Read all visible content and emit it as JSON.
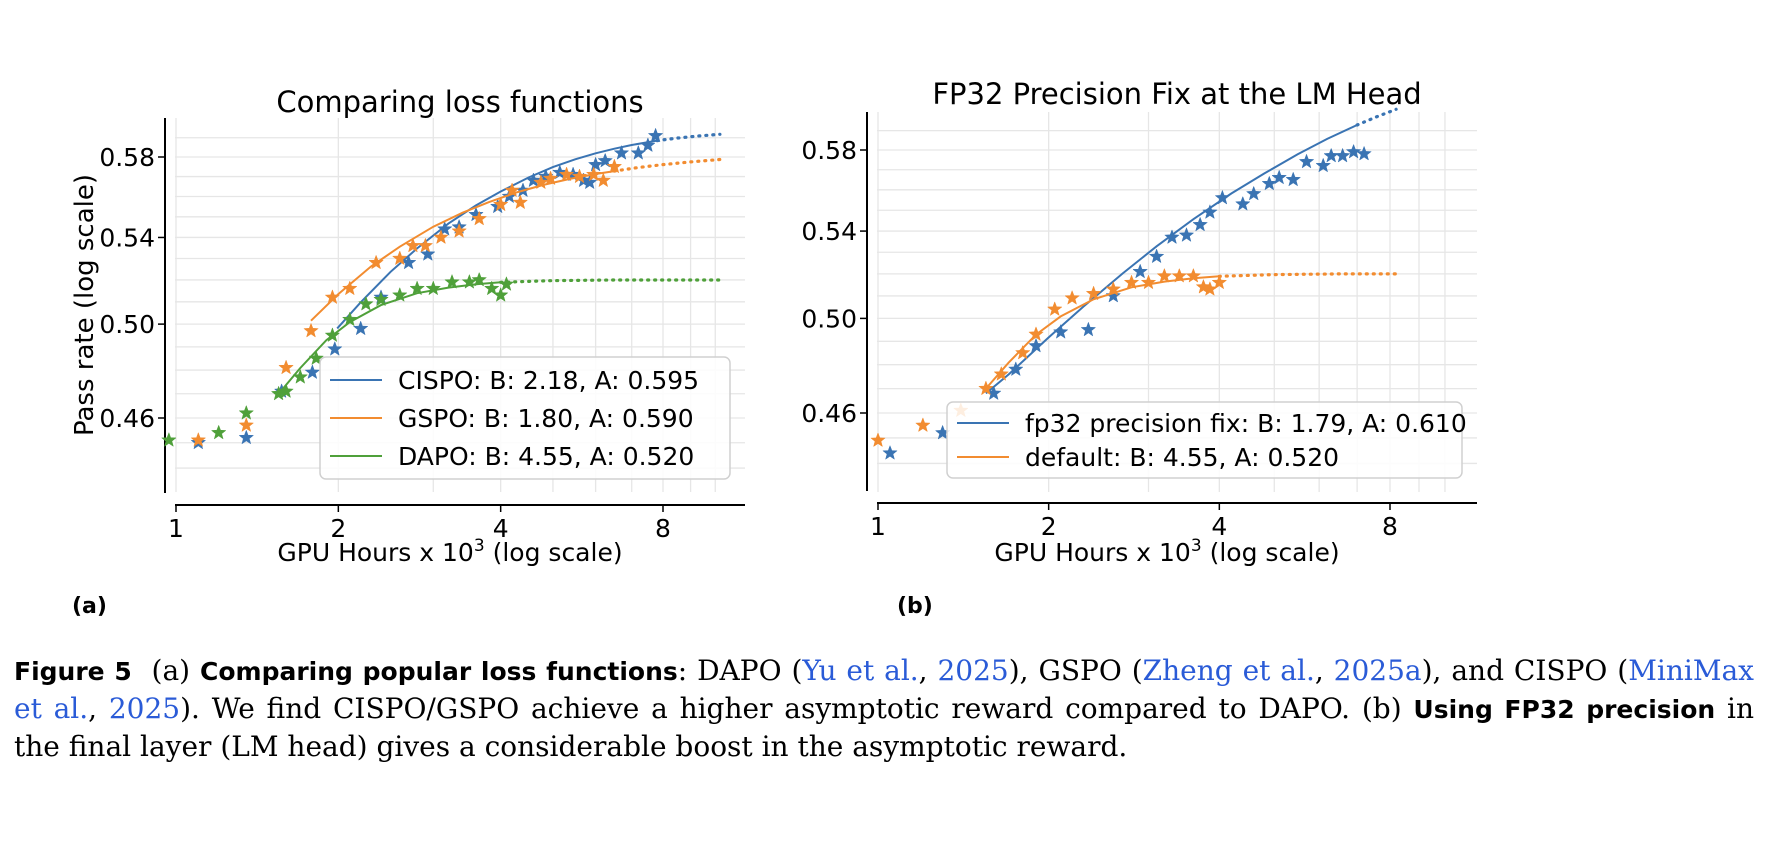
{
  "panel_labels": [
    "(a)",
    "(b)"
  ],
  "chart_data": [
    {
      "type": "scatter",
      "title": "Comparing loss functions",
      "xlabel_main": "GPU Hours x 10",
      "xlabel_sup": "3",
      "xlabel_tail": " (log scale)",
      "ylabel": "Pass rate (log scale)",
      "x_scale": "log",
      "y_scale": "log",
      "xlim": [
        0.97,
        11
      ],
      "ylim": [
        0.435,
        0.598
      ],
      "xticks": [
        1,
        2,
        4,
        8
      ],
      "xtick_labels": [
        "1",
        "2",
        "4",
        "8"
      ],
      "yticks": [
        0.46,
        0.5,
        0.54,
        0.58
      ],
      "ytick_labels": [
        "0.46",
        "0.50",
        "0.54",
        "0.58"
      ],
      "grid": true,
      "legend_placement": "lower-right",
      "series": [
        {
          "name": "CISPO: B: 2.18, A: 0.595",
          "color": "#3a74b3",
          "points": [
            [
              1.1,
              0.45
            ],
            [
              1.35,
              0.452
            ],
            [
              1.57,
              0.471
            ],
            [
              1.79,
              0.479
            ],
            [
              1.97,
              0.489
            ],
            [
              2.2,
              0.498
            ],
            [
              2.4,
              0.512
            ],
            [
              2.7,
              0.528
            ],
            [
              2.93,
              0.532
            ],
            [
              3.15,
              0.544
            ],
            [
              3.35,
              0.545
            ],
            [
              3.6,
              0.551
            ],
            [
              3.95,
              0.555
            ],
            [
              4.15,
              0.56
            ],
            [
              4.4,
              0.563
            ],
            [
              4.6,
              0.568
            ],
            [
              4.85,
              0.57
            ],
            [
              5.15,
              0.572
            ],
            [
              5.45,
              0.571
            ],
            [
              5.7,
              0.568
            ],
            [
              5.85,
              0.567
            ],
            [
              6.0,
              0.576
            ],
            [
              6.25,
              0.578
            ],
            [
              6.7,
              0.582
            ],
            [
              7.2,
              0.582
            ],
            [
              7.5,
              0.586
            ],
            [
              7.75,
              0.591
            ]
          ],
          "fit_solid": [
            [
              1.99,
              0.4981
            ],
            [
              2.2,
              0.5098
            ],
            [
              2.5,
              0.5238
            ],
            [
              2.8,
              0.5348
            ],
            [
              3.2,
              0.5467
            ],
            [
              3.6,
              0.5556
            ],
            [
              4.0,
              0.5625
            ],
            [
              4.5,
              0.5695
            ],
            [
              5.0,
              0.5748
            ],
            [
              5.5,
              0.5788
            ],
            [
              6.0,
              0.5819
            ],
            [
              6.5,
              0.5843
            ],
            [
              7.0,
              0.5862
            ],
            [
              7.8,
              0.5885
            ]
          ],
          "fit_dotted": [
            [
              7.8,
              0.5885
            ],
            [
              8.5,
              0.5898
            ],
            [
              9.3,
              0.5909
            ],
            [
              10.2,
              0.5918
            ]
          ]
        },
        {
          "name": "GSPO: B: 1.80, A: 0.590",
          "color": "#f28c30",
          "points": [
            [
              1.1,
              0.451
            ],
            [
              1.35,
              0.457
            ],
            [
              1.6,
              0.481
            ],
            [
              1.78,
              0.497
            ],
            [
              1.95,
              0.512
            ],
            [
              2.1,
              0.516
            ],
            [
              2.35,
              0.528
            ],
            [
              2.6,
              0.53
            ],
            [
              2.75,
              0.536
            ],
            [
              2.9,
              0.536
            ],
            [
              3.1,
              0.54
            ],
            [
              3.35,
              0.543
            ],
            [
              3.65,
              0.549
            ],
            [
              4.0,
              0.556
            ],
            [
              4.2,
              0.563
            ],
            [
              4.35,
              0.557
            ],
            [
              4.75,
              0.567
            ],
            [
              4.95,
              0.569
            ],
            [
              5.3,
              0.571
            ],
            [
              5.6,
              0.57
            ],
            [
              5.95,
              0.571
            ],
            [
              6.2,
              0.568
            ],
            [
              6.5,
              0.575
            ]
          ],
          "fit_solid": [
            [
              1.78,
              0.5015
            ],
            [
              2.0,
              0.5135
            ],
            [
              2.3,
              0.5263
            ],
            [
              2.6,
              0.5356
            ],
            [
              3.0,
              0.5452
            ],
            [
              3.4,
              0.552
            ],
            [
              3.8,
              0.5572
            ],
            [
              4.3,
              0.5622
            ],
            [
              4.8,
              0.5658
            ],
            [
              5.4,
              0.569
            ],
            [
              6.0,
              0.5713
            ],
            [
              6.5,
              0.5728
            ]
          ],
          "fit_dotted": [
            [
              6.5,
              0.5728
            ],
            [
              7.2,
              0.5746
            ],
            [
              8.0,
              0.5761
            ],
            [
              9.0,
              0.5775
            ],
            [
              10.2,
              0.5787
            ]
          ]
        },
        {
          "name": "DAPO: B: 4.55, A: 0.520",
          "color": "#4fa03a",
          "points": [
            [
              0.97,
              0.451
            ],
            [
              1.2,
              0.454
            ],
            [
              1.35,
              0.462
            ],
            [
              1.55,
              0.47
            ],
            [
              1.6,
              0.471
            ],
            [
              1.7,
              0.477
            ],
            [
              1.82,
              0.485
            ],
            [
              1.95,
              0.495
            ],
            [
              2.1,
              0.502
            ],
            [
              2.25,
              0.509
            ],
            [
              2.4,
              0.511
            ],
            [
              2.6,
              0.513
            ],
            [
              2.8,
              0.516
            ],
            [
              3.0,
              0.516
            ],
            [
              3.25,
              0.519
            ],
            [
              3.5,
              0.519
            ],
            [
              3.65,
              0.52
            ],
            [
              3.85,
              0.516
            ],
            [
              4.0,
              0.513
            ],
            [
              4.1,
              0.518
            ]
          ],
          "fit_solid": [
            [
              1.55,
              0.47
            ],
            [
              1.7,
              0.4809
            ],
            [
              1.9,
              0.4929
            ],
            [
              2.1,
              0.5009
            ],
            [
              2.4,
              0.5085
            ],
            [
              2.8,
              0.5139
            ],
            [
              3.2,
              0.5165
            ],
            [
              3.6,
              0.518
            ],
            [
              4.0,
              0.5189
            ]
          ],
          "fit_dotted": [
            [
              4.0,
              0.5189
            ],
            [
              5.0,
              0.5197
            ],
            [
              6.5,
              0.52
            ],
            [
              8.0,
              0.52
            ],
            [
              10.2,
              0.52
            ]
          ]
        }
      ]
    },
    {
      "type": "scatter",
      "title": "FP32 Precision Fix at the LM Head",
      "xlabel_main": "GPU Hours x 10",
      "xlabel_sup": "3",
      "xlabel_tail": " (log scale)",
      "ylabel": "",
      "x_scale": "log",
      "y_scale": "log",
      "xlim": [
        0.97,
        11
      ],
      "ylim": [
        0.435,
        0.598
      ],
      "xticks": [
        1,
        2,
        4,
        8
      ],
      "xtick_labels": [
        "1",
        "2",
        "4",
        "8"
      ],
      "yticks": [
        0.46,
        0.5,
        0.54,
        0.58
      ],
      "ytick_labels": [
        "0.46",
        "0.50",
        "0.54",
        "0.58"
      ],
      "grid": true,
      "legend_placement": "lower-right",
      "series": [
        {
          "name": "fp32 precision fix: B: 1.79, A: 0.610",
          "color": "#3a74b3",
          "points": [
            [
              1.05,
              0.444
            ],
            [
              1.3,
              0.452
            ],
            [
              1.6,
              0.468
            ],
            [
              1.75,
              0.478
            ],
            [
              1.9,
              0.488
            ],
            [
              2.1,
              0.494
            ],
            [
              2.35,
              0.495
            ],
            [
              2.6,
              0.51
            ],
            [
              2.9,
              0.521
            ],
            [
              3.1,
              0.528
            ],
            [
              3.3,
              0.537
            ],
            [
              3.5,
              0.538
            ],
            [
              3.7,
              0.543
            ],
            [
              3.85,
              0.549
            ],
            [
              4.05,
              0.556
            ],
            [
              4.4,
              0.553
            ],
            [
              4.6,
              0.558
            ],
            [
              4.9,
              0.563
            ],
            [
              5.1,
              0.566
            ],
            [
              5.4,
              0.565
            ],
            [
              5.7,
              0.574
            ],
            [
              6.1,
              0.572
            ],
            [
              6.3,
              0.577
            ],
            [
              6.6,
              0.577
            ],
            [
              6.9,
              0.579
            ],
            [
              7.2,
              0.578
            ]
          ],
          "fit_solid": [
            [
              1.55,
              0.468
            ],
            [
              1.7,
              0.4759
            ],
            [
              2.0,
              0.4917
            ],
            [
              2.3,
              0.5051
            ],
            [
              2.7,
              0.5202
            ],
            [
              3.1,
              0.5328
            ],
            [
              3.6,
              0.5457
            ],
            [
              4.2,
              0.5582
            ],
            [
              4.8,
              0.5681
            ],
            [
              5.5,
              0.5778
            ],
            [
              6.2,
              0.5857
            ],
            [
              7.0,
              0.5929
            ]
          ],
          "fit_dotted": [
            [
              7.0,
              0.5929
            ],
            [
              7.6,
              0.5974
            ],
            [
              8.2,
              0.6012
            ]
          ]
        },
        {
          "name": "default: B: 4.55, A: 0.520",
          "color": "#f28c30",
          "points": [
            [
              1.0,
              0.449
            ],
            [
              1.2,
              0.455
            ],
            [
              1.4,
              0.461
            ],
            [
              1.55,
              0.47
            ],
            [
              1.65,
              0.476
            ],
            [
              1.8,
              0.485
            ],
            [
              1.9,
              0.493
            ],
            [
              2.05,
              0.504
            ],
            [
              2.2,
              0.509
            ],
            [
              2.4,
              0.511
            ],
            [
              2.6,
              0.513
            ],
            [
              2.8,
              0.516
            ],
            [
              3.0,
              0.516
            ],
            [
              3.2,
              0.519
            ],
            [
              3.4,
              0.519
            ],
            [
              3.6,
              0.519
            ],
            [
              3.75,
              0.514
            ],
            [
              3.85,
              0.513
            ],
            [
              4.0,
              0.516
            ]
          ],
          "fit_solid": [
            [
              1.55,
              0.47
            ],
            [
              1.7,
              0.4809
            ],
            [
              1.9,
              0.4929
            ],
            [
              2.1,
              0.5009
            ],
            [
              2.4,
              0.5085
            ],
            [
              2.8,
              0.5139
            ],
            [
              3.2,
              0.5165
            ],
            [
              3.6,
              0.518
            ],
            [
              4.0,
              0.5189
            ]
          ],
          "fit_dotted": [
            [
              4.0,
              0.5189
            ],
            [
              5.0,
              0.5197
            ],
            [
              6.5,
              0.52
            ],
            [
              8.2,
              0.52
            ]
          ]
        }
      ]
    }
  ],
  "caption": {
    "fig_label": "Figure 5",
    "part_a": "(a)",
    "bold_a": "Comparing popular loss functions",
    "t1": ":  DAPO (",
    "cite1_name": "Yu et al.",
    "sep1": ", ",
    "cite1_year": "2025",
    "t2": "), GSPO (",
    "cite2_name": "Zheng et al.",
    "sep2": ", ",
    "cite2_year": "2025a",
    "t3": "), and CISPO (",
    "cite3_name": "MiniMax et al.",
    "sep3": ", ",
    "cite3_year": "2025",
    "t4": "). We find CISPO/GSPO achieve a higher asymptotic reward compared to DAPO. (b) ",
    "bold_b": "Using FP32 precision",
    "t5": " in the final layer (LM head) gives a considerable boost in the asymptotic reward."
  }
}
